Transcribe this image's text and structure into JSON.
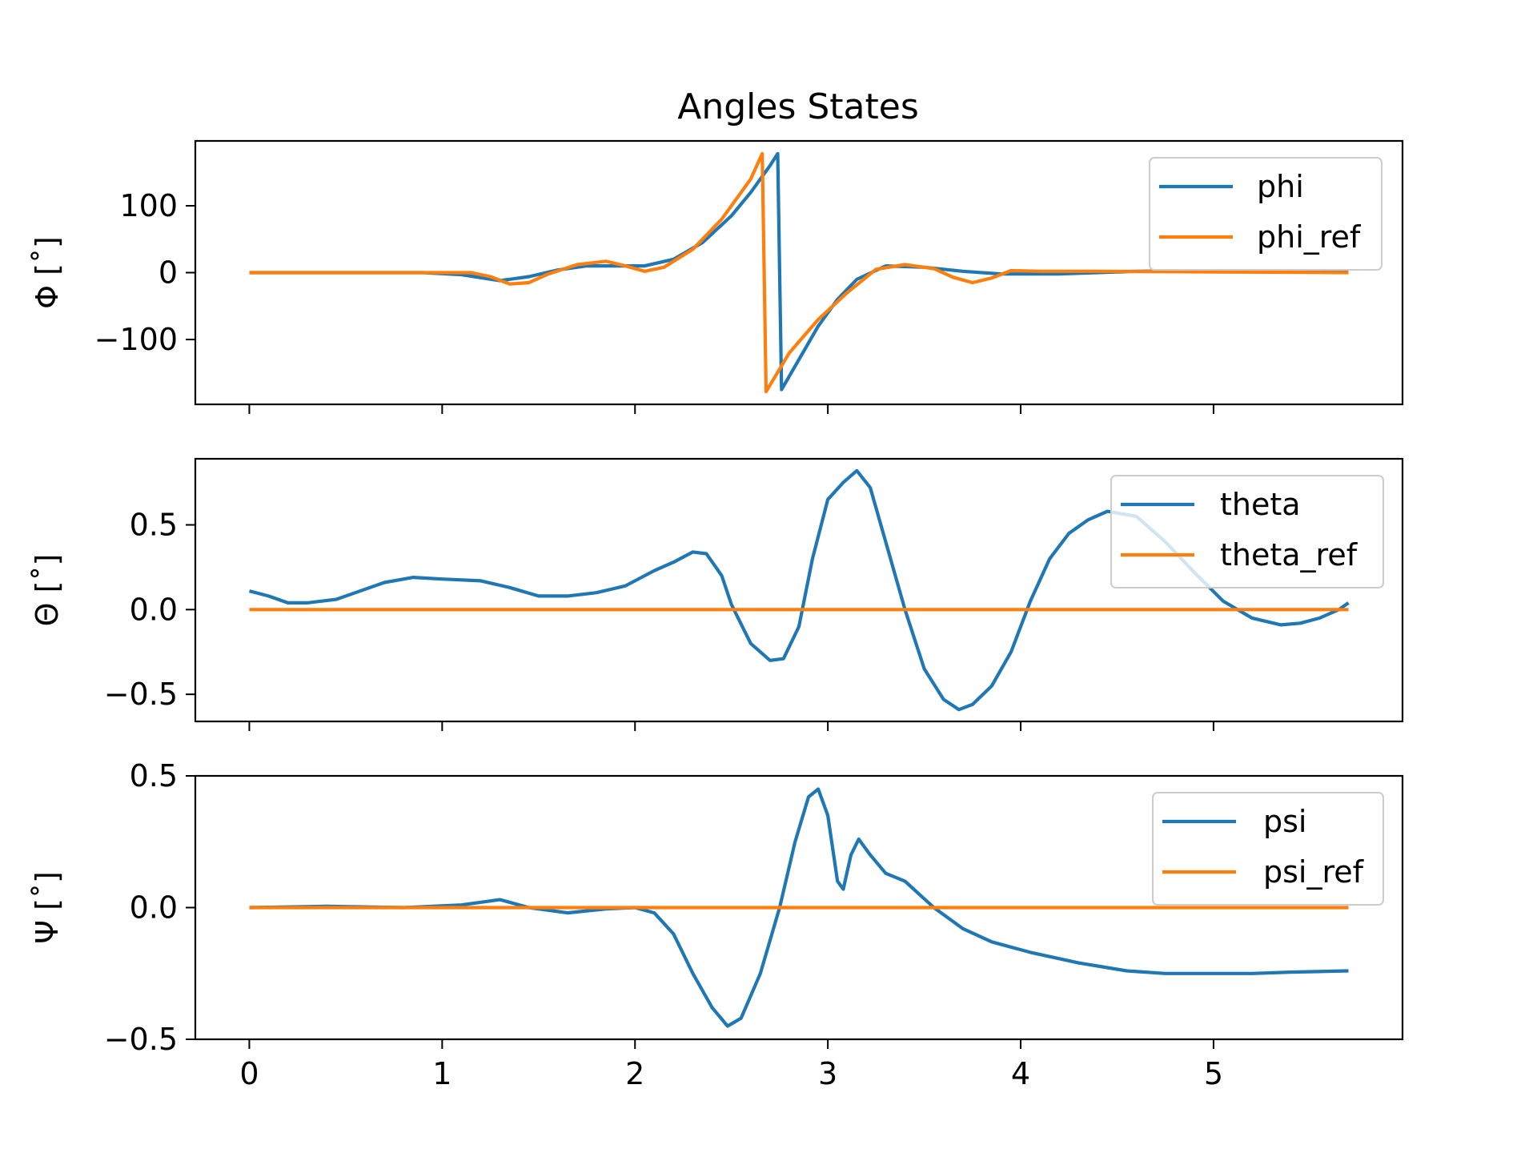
{
  "chart_data": {
    "title": "Angles States",
    "type": "line",
    "shared_x": {
      "ticks": [
        0,
        1,
        2,
        3,
        4,
        5
      ],
      "tick_labels": [
        "0",
        "1",
        "2",
        "3",
        "4",
        "5"
      ],
      "xlim": [
        -0.28,
        5.98
      ]
    },
    "subplots": [
      {
        "ylabel": "Φ [˚]",
        "ylim": [
          -197,
          197
        ],
        "yticks": [
          -100,
          0,
          100
        ],
        "ytick_labels": [
          "−100",
          "0",
          "100"
        ],
        "legend": "top-right",
        "series": [
          {
            "name": "phi",
            "color": "#1f77b4",
            "points": [
              [
                0,
                0
              ],
              [
                0.5,
                0
              ],
              [
                0.9,
                0
              ],
              [
                1.1,
                -3
              ],
              [
                1.3,
                -12
              ],
              [
                1.45,
                -6
              ],
              [
                1.6,
                4
              ],
              [
                1.75,
                10
              ],
              [
                1.9,
                10
              ],
              [
                2.05,
                10
              ],
              [
                2.2,
                20
              ],
              [
                2.35,
                45
              ],
              [
                2.5,
                85
              ],
              [
                2.6,
                120
              ],
              [
                2.7,
                160
              ],
              [
                2.74,
                178
              ],
              [
                2.76,
                -175
              ],
              [
                2.85,
                -130
              ],
              [
                2.95,
                -80
              ],
              [
                3.05,
                -40
              ],
              [
                3.15,
                -10
              ],
              [
                3.3,
                10
              ],
              [
                3.5,
                8
              ],
              [
                3.7,
                2
              ],
              [
                3.9,
                -2
              ],
              [
                4.2,
                -2
              ],
              [
                4.6,
                2
              ],
              [
                5.0,
                3
              ],
              [
                5.7,
                3
              ]
            ]
          },
          {
            "name": "phi_ref",
            "color": "#ff7f0e",
            "points": [
              [
                0,
                0
              ],
              [
                0.6,
                0
              ],
              [
                1.0,
                0
              ],
              [
                1.15,
                0
              ],
              [
                1.25,
                -6
              ],
              [
                1.35,
                -17
              ],
              [
                1.45,
                -15
              ],
              [
                1.55,
                -2
              ],
              [
                1.7,
                12
              ],
              [
                1.85,
                17
              ],
              [
                1.95,
                10
              ],
              [
                2.05,
                2
              ],
              [
                2.15,
                8
              ],
              [
                2.3,
                35
              ],
              [
                2.45,
                80
              ],
              [
                2.6,
                140
              ],
              [
                2.66,
                178
              ],
              [
                2.68,
                -178
              ],
              [
                2.8,
                -120
              ],
              [
                2.95,
                -70
              ],
              [
                3.1,
                -30
              ],
              [
                3.25,
                5
              ],
              [
                3.4,
                12
              ],
              [
                3.55,
                6
              ],
              [
                3.65,
                -7
              ],
              [
                3.75,
                -15
              ],
              [
                3.85,
                -8
              ],
              [
                3.95,
                3
              ],
              [
                4.1,
                2
              ],
              [
                4.4,
                2
              ],
              [
                5.7,
                0
              ]
            ]
          }
        ]
      },
      {
        "ylabel": "Θ [˚]",
        "ylim": [
          -0.66,
          0.89
        ],
        "yticks": [
          -0.5,
          0.0,
          0.5
        ],
        "ytick_labels": [
          "−0.5",
          "0.0",
          "0.5"
        ],
        "legend": "top-right",
        "series": [
          {
            "name": "theta",
            "color": "#1f77b4",
            "points": [
              [
                0,
                0.11
              ],
              [
                0.1,
                0.08
              ],
              [
                0.2,
                0.04
              ],
              [
                0.3,
                0.04
              ],
              [
                0.45,
                0.06
              ],
              [
                0.55,
                0.1
              ],
              [
                0.7,
                0.16
              ],
              [
                0.85,
                0.19
              ],
              [
                1.0,
                0.18
              ],
              [
                1.2,
                0.17
              ],
              [
                1.35,
                0.13
              ],
              [
                1.5,
                0.08
              ],
              [
                1.65,
                0.08
              ],
              [
                1.8,
                0.1
              ],
              [
                1.95,
                0.14
              ],
              [
                2.1,
                0.23
              ],
              [
                2.2,
                0.28
              ],
              [
                2.3,
                0.34
              ],
              [
                2.37,
                0.33
              ],
              [
                2.45,
                0.2
              ],
              [
                2.5,
                0.03
              ],
              [
                2.6,
                -0.2
              ],
              [
                2.7,
                -0.3
              ],
              [
                2.77,
                -0.29
              ],
              [
                2.85,
                -0.1
              ],
              [
                2.92,
                0.3
              ],
              [
                3.0,
                0.65
              ],
              [
                3.08,
                0.75
              ],
              [
                3.15,
                0.82
              ],
              [
                3.22,
                0.72
              ],
              [
                3.3,
                0.4
              ],
              [
                3.4,
                0.0
              ],
              [
                3.5,
                -0.35
              ],
              [
                3.6,
                -0.53
              ],
              [
                3.68,
                -0.59
              ],
              [
                3.75,
                -0.56
              ],
              [
                3.85,
                -0.45
              ],
              [
                3.95,
                -0.25
              ],
              [
                4.05,
                0.05
              ],
              [
                4.15,
                0.3
              ],
              [
                4.25,
                0.45
              ],
              [
                4.35,
                0.53
              ],
              [
                4.45,
                0.58
              ],
              [
                4.6,
                0.55
              ],
              [
                4.75,
                0.4
              ],
              [
                4.9,
                0.22
              ],
              [
                5.05,
                0.05
              ],
              [
                5.2,
                -0.05
              ],
              [
                5.35,
                -0.09
              ],
              [
                5.45,
                -0.08
              ],
              [
                5.55,
                -0.05
              ],
              [
                5.65,
                0.0
              ],
              [
                5.7,
                0.04
              ]
            ]
          },
          {
            "name": "theta_ref",
            "color": "#ff7f0e",
            "points": [
              [
                0,
                0
              ],
              [
                5.7,
                0
              ]
            ]
          }
        ]
      },
      {
        "ylabel": "Ψ [˚]",
        "ylim": [
          -0.5,
          0.5
        ],
        "yticks": [
          -0.5,
          0.0,
          0.5
        ],
        "ytick_labels": [
          "−0.5",
          "0.0",
          "0.5"
        ],
        "legend": "top-right",
        "series": [
          {
            "name": "psi",
            "color": "#1f77b4",
            "points": [
              [
                0,
                0.0
              ],
              [
                0.4,
                0.005
              ],
              [
                0.8,
                0.0
              ],
              [
                1.1,
                0.01
              ],
              [
                1.3,
                0.03
              ],
              [
                1.45,
                0.0
              ],
              [
                1.65,
                -0.02
              ],
              [
                1.85,
                -0.005
              ],
              [
                2.0,
                0.0
              ],
              [
                2.1,
                -0.02
              ],
              [
                2.2,
                -0.1
              ],
              [
                2.3,
                -0.25
              ],
              [
                2.4,
                -0.38
              ],
              [
                2.48,
                -0.45
              ],
              [
                2.55,
                -0.42
              ],
              [
                2.65,
                -0.25
              ],
              [
                2.75,
                0.0
              ],
              [
                2.83,
                0.25
              ],
              [
                2.9,
                0.42
              ],
              [
                2.95,
                0.45
              ],
              [
                3.0,
                0.35
              ],
              [
                3.05,
                0.1
              ],
              [
                3.08,
                0.07
              ],
              [
                3.12,
                0.2
              ],
              [
                3.16,
                0.26
              ],
              [
                3.22,
                0.2
              ],
              [
                3.3,
                0.13
              ],
              [
                3.4,
                0.1
              ],
              [
                3.55,
                0.0
              ],
              [
                3.7,
                -0.08
              ],
              [
                3.85,
                -0.13
              ],
              [
                4.05,
                -0.17
              ],
              [
                4.3,
                -0.21
              ],
              [
                4.55,
                -0.24
              ],
              [
                4.75,
                -0.25
              ],
              [
                5.0,
                -0.25
              ],
              [
                5.2,
                -0.25
              ],
              [
                5.4,
                -0.245
              ],
              [
                5.7,
                -0.24
              ]
            ]
          },
          {
            "name": "psi_ref",
            "color": "#ff7f0e",
            "points": [
              [
                0,
                0
              ],
              [
                5.7,
                0
              ]
            ]
          }
        ]
      }
    ]
  }
}
